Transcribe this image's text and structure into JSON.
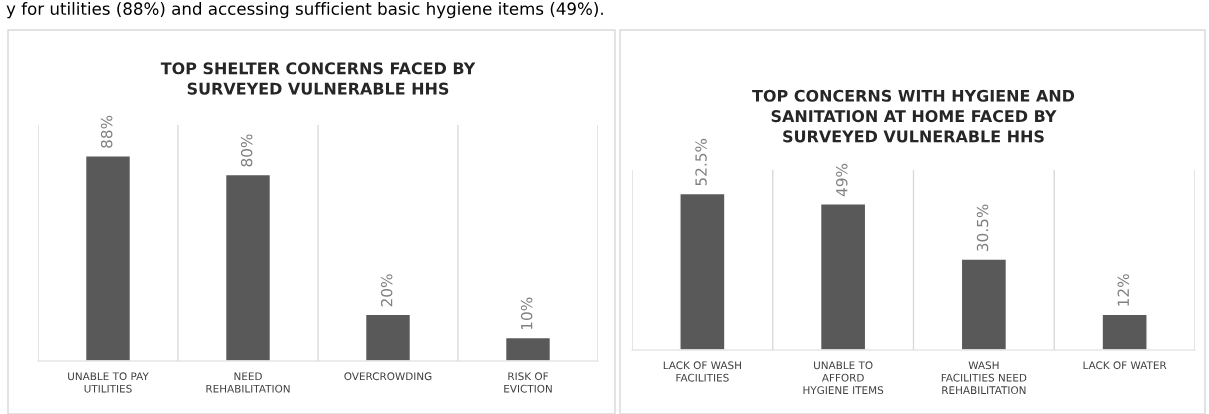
{
  "chart_data": [
    {
      "type": "bar",
      "title": "TOP SHELTER CONCERNS FACED BY\nSURVEYED VULNERABLE HHS",
      "annotations": [
        "y for utilities (88%) and accessing sufficient basic hygiene items (49%)."
      ],
      "categories": [
        "UNABLE TO PAY\nUTILITIES",
        "NEED\nREHABILITATION",
        "OVERCROWDING",
        "RISK OF\nEVICTION"
      ],
      "values": [
        88,
        80,
        20,
        10
      ],
      "value_labels": [
        "88%",
        "80%",
        "20%",
        "10%"
      ],
      "color": "#595959",
      "grid": false,
      "legend": false
    },
    {
      "type": "bar",
      "title": "TOP CONCERNS WITH HYGIENE AND\nSANITATION AT HOME FACED BY\nSURVEYED VULNERABLE HHS",
      "categories": [
        "LACK OF WASH\nFACILITIES",
        "UNABLE TO\nAFFORD\nHYGIENE ITEMS",
        "WASH\nFACILITIES NEED\nREHABILITATION",
        "LACK OF WATER"
      ],
      "values": [
        52.5,
        49,
        30.5,
        12
      ],
      "value_labels": [
        "52.5%",
        "49%",
        "30.5%",
        "12%"
      ],
      "color": "#595959",
      "grid": false,
      "legend": false
    }
  ]
}
